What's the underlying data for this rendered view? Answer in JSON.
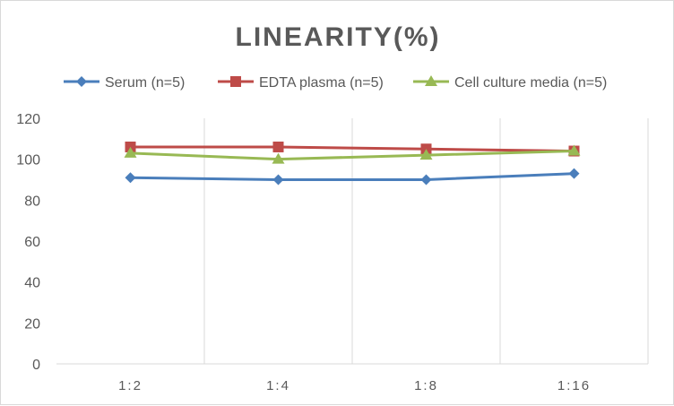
{
  "chart_data": {
    "type": "line",
    "title": "LINEARITY(%)",
    "categories": [
      "1:2",
      "1:4",
      "1:8",
      "1:16"
    ],
    "ylim": [
      0,
      120
    ],
    "yticks": [
      0,
      20,
      40,
      60,
      80,
      100,
      120
    ],
    "grid": "vertical",
    "legend": "top",
    "series": [
      {
        "name": "Serum (n=5)",
        "values": [
          91,
          90,
          90,
          93
        ],
        "color": "#4a7ebb",
        "marker": "diamond"
      },
      {
        "name": "EDTA plasma (n=5)",
        "values": [
          106,
          106,
          105,
          104
        ],
        "color": "#be4b48",
        "marker": "square"
      },
      {
        "name": "Cell culture media (n=5)",
        "values": [
          103,
          100,
          102,
          104
        ],
        "color": "#98b954",
        "marker": "triangle"
      }
    ]
  }
}
